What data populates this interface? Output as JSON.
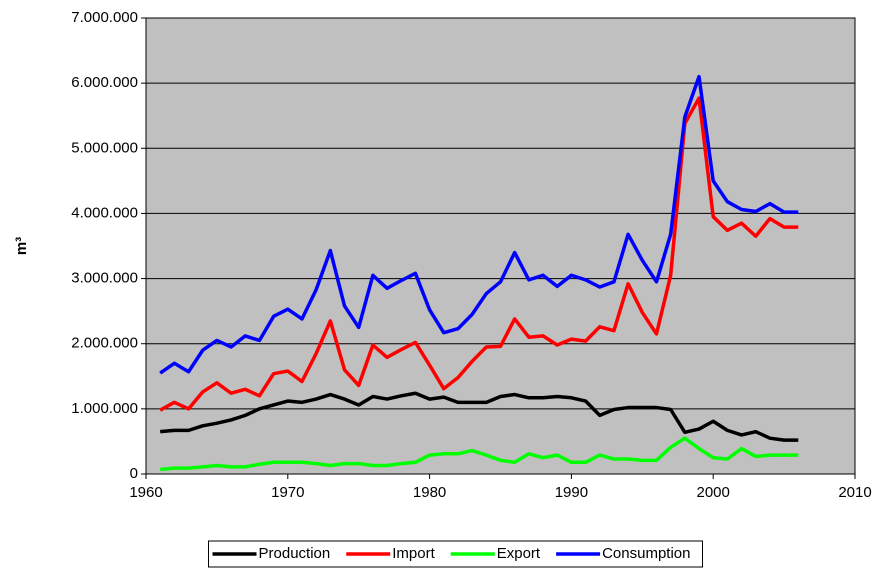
{
  "chart_data": {
    "type": "line",
    "y_label": "m³",
    "x": [
      1961,
      1962,
      1963,
      1964,
      1965,
      1966,
      1967,
      1968,
      1969,
      1970,
      1971,
      1972,
      1973,
      1974,
      1975,
      1976,
      1977,
      1978,
      1979,
      1980,
      1981,
      1982,
      1983,
      1984,
      1985,
      1986,
      1987,
      1988,
      1989,
      1990,
      1991,
      1992,
      1993,
      1994,
      1995,
      1996,
      1997,
      1998,
      1999,
      2000,
      2001,
      2002,
      2003,
      2004,
      2005,
      2006
    ],
    "series": [
      {
        "name": "Production",
        "color": "#000000",
        "values": [
          650000,
          670000,
          670000,
          740000,
          780000,
          830000,
          900000,
          1000000,
          1060000,
          1120000,
          1100000,
          1150000,
          1220000,
          1150000,
          1060000,
          1190000,
          1150000,
          1200000,
          1240000,
          1150000,
          1180000,
          1100000,
          1100000,
          1100000,
          1190000,
          1220000,
          1170000,
          1170000,
          1190000,
          1170000,
          1120000,
          900000,
          990000,
          1020000,
          1020000,
          1020000,
          990000,
          640000,
          690000,
          810000,
          670000,
          600000,
          650000,
          550000,
          520000,
          520000
        ]
      },
      {
        "name": "Import",
        "color": "#ff0000",
        "values": [
          980000,
          1100000,
          1000000,
          1260000,
          1400000,
          1240000,
          1300000,
          1200000,
          1540000,
          1580000,
          1420000,
          1850000,
          2350000,
          1600000,
          1360000,
          1980000,
          1790000,
          1910000,
          2020000,
          1670000,
          1310000,
          1480000,
          1730000,
          1950000,
          1960000,
          2380000,
          2100000,
          2120000,
          1980000,
          2070000,
          2040000,
          2260000,
          2200000,
          2920000,
          2480000,
          2150000,
          3050000,
          5380000,
          5770000,
          3950000,
          3740000,
          3850000,
          3650000,
          3920000,
          3790000,
          3790000
        ]
      },
      {
        "name": "Export",
        "color": "#00ff00",
        "values": [
          70000,
          90000,
          90000,
          110000,
          130000,
          110000,
          110000,
          150000,
          180000,
          180000,
          180000,
          160000,
          130000,
          160000,
          160000,
          130000,
          130000,
          160000,
          180000,
          290000,
          310000,
          310000,
          360000,
          290000,
          210000,
          180000,
          310000,
          250000,
          290000,
          180000,
          180000,
          290000,
          230000,
          230000,
          210000,
          210000,
          410000,
          550000,
          390000,
          250000,
          230000,
          390000,
          270000,
          290000,
          290000,
          290000
        ]
      },
      {
        "name": "Consumption",
        "color": "#0000ff",
        "values": [
          1550000,
          1700000,
          1570000,
          1900000,
          2050000,
          1950000,
          2120000,
          2050000,
          2420000,
          2530000,
          2380000,
          2830000,
          3430000,
          2580000,
          2250000,
          3050000,
          2850000,
          2970000,
          3080000,
          2520000,
          2170000,
          2230000,
          2450000,
          2770000,
          2950000,
          3400000,
          2980000,
          3050000,
          2880000,
          3050000,
          2980000,
          2870000,
          2950000,
          3680000,
          3280000,
          2950000,
          3680000,
          5480000,
          6100000,
          4500000,
          4180000,
          4060000,
          4030000,
          4150000,
          4020000,
          4020000
        ]
      }
    ],
    "xlim": [
      1960,
      2010
    ],
    "xticks": [
      1960,
      1970,
      1980,
      1990,
      2000,
      2010
    ],
    "ylim": [
      0,
      7000000
    ],
    "yticks": [
      0,
      {
        "value": 1000000,
        "label": "1.000.000"
      },
      {
        "value": 2000000,
        "label": "2.000.000"
      },
      {
        "value": 3000000,
        "label": "3.000.000"
      },
      {
        "value": 4000000,
        "label": "4.000.000"
      },
      {
        "value": 5000000,
        "label": "5.000.000"
      },
      {
        "value": 6000000,
        "label": "6.000.000"
      },
      {
        "value": 7000000,
        "label": "7.000.000"
      }
    ],
    "grid": true,
    "plot_background": "#c0c0c0",
    "legend": "bottom"
  }
}
